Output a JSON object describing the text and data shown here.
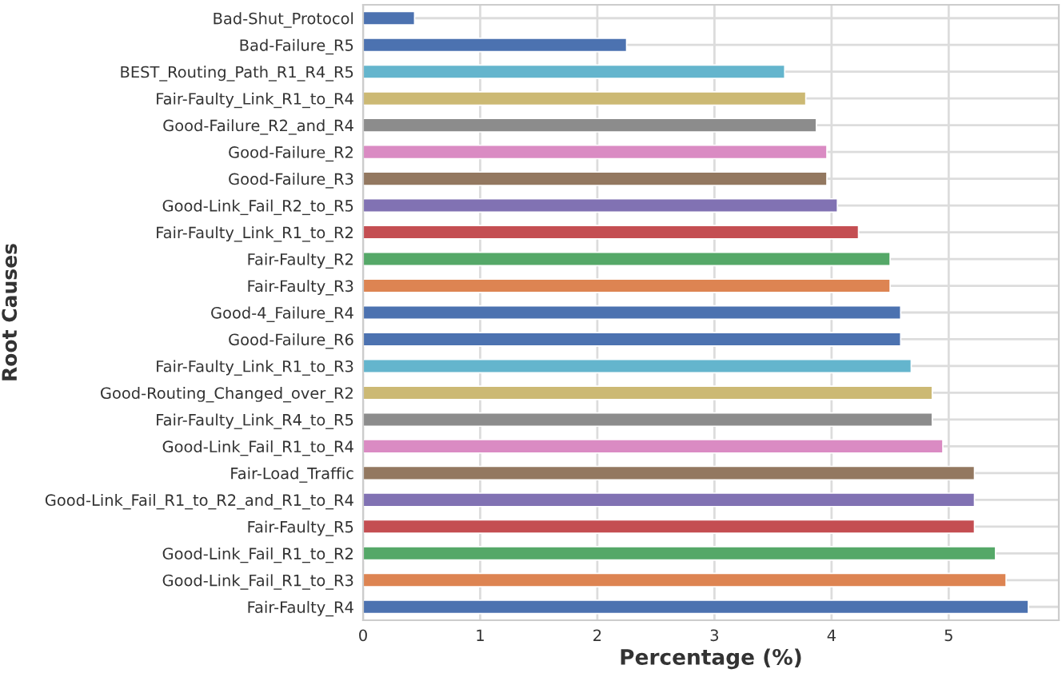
{
  "chart_data": {
    "type": "bar",
    "orientation": "horizontal",
    "xlabel": "Percentage (%)",
    "ylabel": "Root Causes",
    "categories": [
      "Bad-Shut_Protocol",
      "Bad-Failure_R5",
      "BEST_Routing_Path_R1_R4_R5",
      "Fair-Faulty_Link_R1_to_R4",
      "Good-Failure_R2_and_R4",
      "Good-Failure_R2",
      "Good-Failure_R3",
      "Good-Link_Fail_R2_to_R5",
      "Fair-Faulty_Link_R1_to_R2",
      "Fair-Faulty_R2",
      "Fair-Faulty_R3",
      "Good-4_Failure_R4",
      "Good-Failure_R6",
      "Fair-Faulty_Link_R1_to_R3",
      "Good-Routing_Changed_over_R2",
      "Fair-Faulty_Link_R4_to_R5",
      "Good-Link_Fail_R1_to_R4",
      "Fair-Load_Traffic",
      "Good-Link_Fail_R1_to_R2_and_R1_to_R4",
      "Fair-Faulty_R5",
      "Good-Link_Fail_R1_to_R2",
      "Good-Link_Fail_R1_to_R3",
      "Fair-Faulty_R4"
    ],
    "values": [
      0.44,
      2.25,
      3.6,
      3.78,
      3.87,
      3.96,
      3.96,
      4.05,
      4.23,
      4.5,
      4.5,
      4.59,
      4.59,
      4.68,
      4.86,
      4.86,
      4.95,
      5.22,
      5.22,
      5.22,
      5.4,
      5.49,
      5.68
    ],
    "colors": [
      "#4c72b0",
      "#4c72b0",
      "#64b5cd",
      "#ccb974",
      "#8c8c8c",
      "#da8bc3",
      "#937860",
      "#8172b3",
      "#c44e52",
      "#55a868",
      "#dd8452",
      "#4c72b0",
      "#4c72b0",
      "#64b5cd",
      "#ccb974",
      "#8c8c8c",
      "#da8bc3",
      "#937860",
      "#8172b3",
      "#c44e52",
      "#55a868",
      "#dd8452",
      "#4c72b0"
    ],
    "xlim": [
      0,
      5.94
    ],
    "xticks": [
      0,
      1,
      2,
      3,
      4,
      5
    ],
    "grid": true
  }
}
